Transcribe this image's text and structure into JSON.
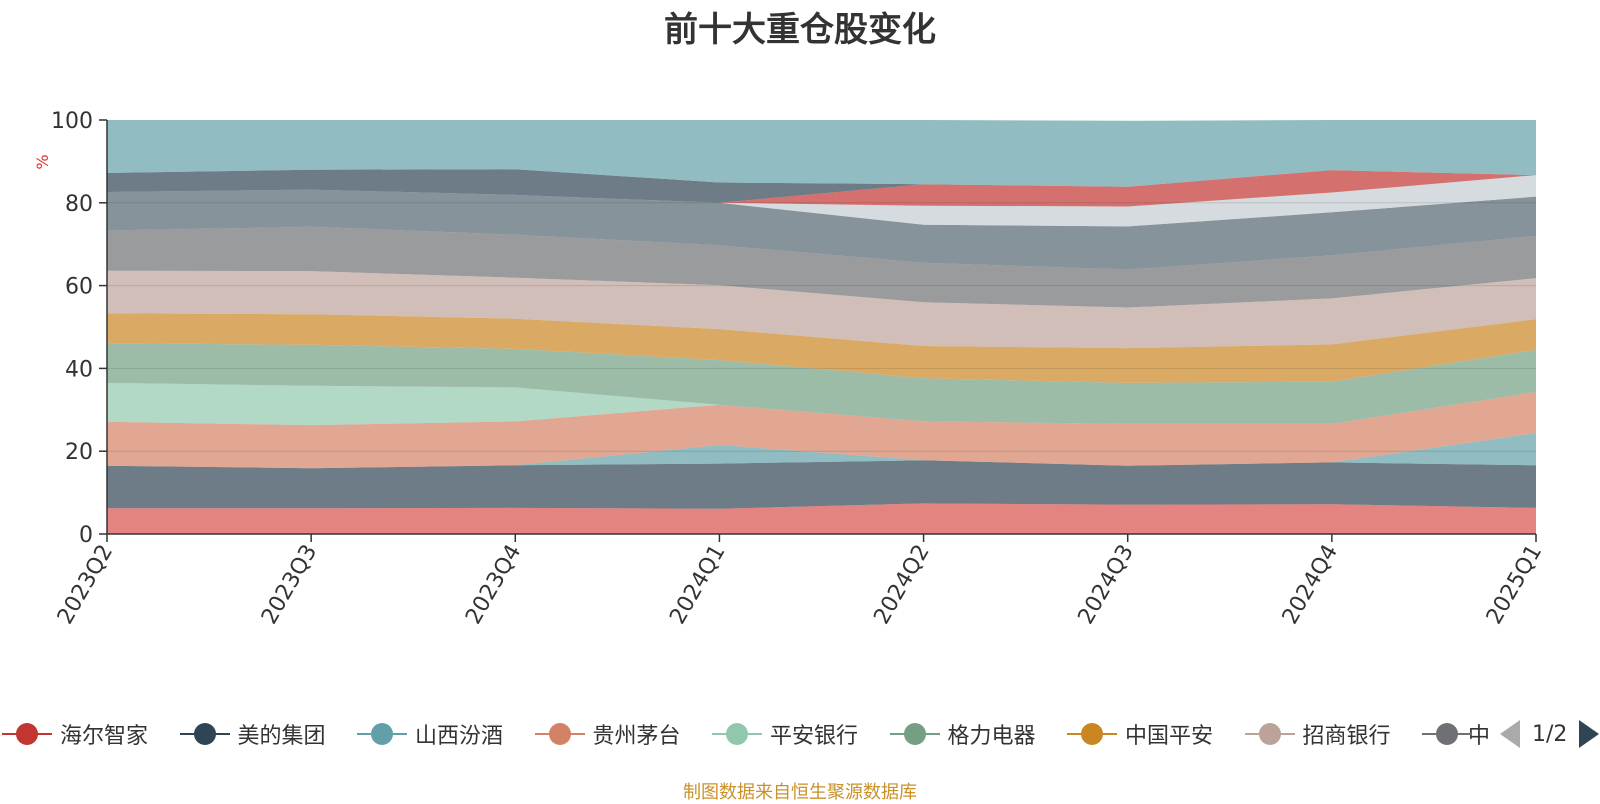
{
  "chart_data": {
    "type": "area",
    "title": "前十大重仓股变化",
    "ylabel": "%",
    "ylim": [
      0,
      100
    ],
    "y_ticks": [
      "0",
      "20",
      "40",
      "60",
      "80",
      "100"
    ],
    "stacked": true,
    "categories": [
      "2023Q2",
      "2023Q3",
      "2023Q4",
      "2024Q1",
      "2024Q2",
      "2024Q3",
      "2024Q4",
      "2025Q1"
    ],
    "series": [
      {
        "name": "海尔智家",
        "color": "#d7504b",
        "values": [
          6.2,
          6.2,
          6.3,
          6.1,
          7.4,
          7.1,
          7.2,
          6.3
        ]
      },
      {
        "name": "美的集团",
        "color": "#2f4554",
        "values": [
          10.3,
          9.7,
          10.3,
          10.9,
          10.4,
          9.4,
          10.1,
          10.3
        ]
      },
      {
        "name": "山西汾酒",
        "color": "#61a0a8",
        "values": [
          0,
          0,
          0,
          4.5,
          0,
          0,
          0,
          7.8
        ]
      },
      {
        "name": "贵州茅台",
        "color": "#d48265",
        "values": [
          10.6,
          10.4,
          10.6,
          9.7,
          9.4,
          10.1,
          9.3,
          9.9
        ]
      },
      {
        "name": "平安银行",
        "color": "#91c7ae",
        "values": [
          9.4,
          9.5,
          8.2,
          0,
          0,
          0,
          0,
          0
        ]
      },
      {
        "name": "格力电器",
        "color": "#749f83",
        "values": [
          9.6,
          9.9,
          9.3,
          10.8,
          10.4,
          9.9,
          10.2,
          10.2
        ]
      },
      {
        "name": "中国平安",
        "color": "#ca8622",
        "values": [
          7.2,
          7.4,
          7.3,
          7.5,
          7.8,
          8.4,
          9.0,
          7.4
        ]
      },
      {
        "name": "招商银行",
        "color": "#bda29a",
        "values": [
          10.3,
          10.4,
          9.9,
          10.6,
          10.6,
          9.8,
          11.1,
          9.9
        ]
      },
      {
        "name": "",
        "color": "#6e7074",
        "values": [
          9.7,
          10.7,
          10.4,
          9.6,
          9.5,
          9.2,
          10.4,
          10.2
        ]
      },
      {
        "name": "",
        "color": "#546570",
        "values": [
          9.3,
          9.0,
          9.6,
          10.3,
          9.2,
          10.4,
          10.4,
          9.5
        ]
      },
      {
        "name": "",
        "color": "#c4ccd3",
        "values": [
          0,
          0,
          0,
          0,
          4.6,
          4.8,
          4.8,
          5.2
        ]
      },
      {
        "name": "",
        "color": "#c23531",
        "values": [
          0,
          0,
          0,
          0,
          5.2,
          4.8,
          5.4,
          0
        ]
      },
      {
        "name": "",
        "color": "#2f4554",
        "values": [
          4.6,
          4.8,
          6.2,
          4.9,
          0,
          0,
          0,
          0
        ]
      },
      {
        "name": "",
        "color": "#61a0a8",
        "values": [
          12.8,
          12.0,
          11.9,
          15.1,
          15.5,
          15.9,
          12.1,
          13.3
        ]
      }
    ]
  },
  "legend": {
    "page": "1/2",
    "items": [
      {
        "label": "海尔智家",
        "color": "#c23531"
      },
      {
        "label": "美的集团",
        "color": "#2f4554"
      },
      {
        "label": "山西汾酒",
        "color": "#61a0a8"
      },
      {
        "label": "贵州茅台",
        "color": "#d48265"
      },
      {
        "label": "平安银行",
        "color": "#91c7ae"
      },
      {
        "label": "格力电器",
        "color": "#749f83"
      },
      {
        "label": "中国平安",
        "color": "#ca8622"
      },
      {
        "label": "招商银行",
        "color": "#bda29a"
      },
      {
        "label": "中",
        "color": "#6e7074"
      }
    ]
  },
  "footnote": "制图数据来自恒生聚源数据库"
}
